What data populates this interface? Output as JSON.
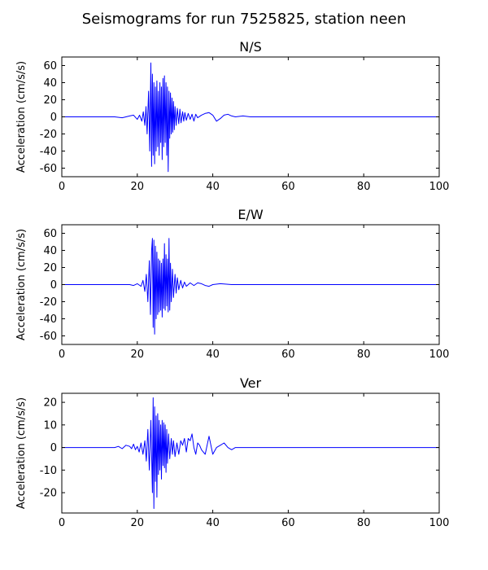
{
  "figure": {
    "title": "Seismograms for run 7525825, station neen"
  },
  "chart_data": [
    {
      "type": "line",
      "title": "N/S",
      "xlabel": "",
      "ylabel": "Acceleration (cm/s/s)",
      "xlim": [
        0,
        100
      ],
      "ylim": [
        -70,
        70
      ],
      "xticks": [
        0,
        20,
        40,
        60,
        80,
        100
      ],
      "yticks": [
        -60,
        -40,
        -20,
        0,
        20,
        40,
        60
      ],
      "grid": false,
      "series": [
        {
          "color": "#0000ff",
          "x": [
            0,
            10,
            14,
            16,
            17,
            18,
            19,
            20,
            20.6,
            21.2,
            21.6,
            22,
            22.3,
            22.6,
            23,
            23.3,
            23.6,
            23.8,
            24,
            24.2,
            24.4,
            24.6,
            24.8,
            25,
            25.2,
            25.4,
            25.6,
            25.8,
            26,
            26.2,
            26.4,
            26.6,
            26.8,
            27,
            27.2,
            27.4,
            27.6,
            27.8,
            28,
            28.2,
            28.4,
            28.6,
            28.8,
            29,
            29.2,
            29.4,
            29.6,
            29.8,
            30,
            30.3,
            30.6,
            31,
            31.3,
            31.6,
            32,
            32.3,
            32.6,
            33,
            33.5,
            34,
            34.5,
            35,
            35.5,
            36,
            37,
            38,
            39,
            40,
            41,
            42,
            43,
            44,
            45,
            46,
            48,
            50,
            55,
            60,
            70,
            80,
            90,
            100
          ],
          "y": [
            0,
            0,
            0,
            -1,
            0,
            1,
            2,
            -3,
            2,
            -5,
            6,
            -10,
            12,
            -20,
            30,
            -40,
            63,
            -58,
            50,
            -45,
            40,
            -55,
            35,
            -40,
            42,
            -35,
            30,
            -45,
            40,
            -30,
            35,
            -50,
            45,
            -35,
            48,
            -30,
            40,
            -45,
            35,
            -64,
            30,
            -25,
            28,
            -20,
            22,
            -18,
            18,
            -15,
            12,
            -10,
            10,
            -8,
            9,
            -7,
            6,
            -5,
            5,
            -4,
            4,
            -3,
            3,
            -5,
            3,
            -1,
            2,
            4,
            5,
            2,
            -5,
            -2,
            2,
            3,
            1,
            0,
            1,
            0,
            0,
            0,
            0,
            0,
            0,
            0
          ]
        }
      ]
    },
    {
      "type": "line",
      "title": "E/W",
      "xlabel": "",
      "ylabel": "Acceleration (cm/s/s)",
      "xlim": [
        0,
        100
      ],
      "ylim": [
        -70,
        70
      ],
      "xticks": [
        0,
        20,
        40,
        60,
        80,
        100
      ],
      "yticks": [
        -60,
        -40,
        -20,
        0,
        20,
        40,
        60
      ],
      "grid": false,
      "series": [
        {
          "color": "#0000ff",
          "x": [
            0,
            10,
            15,
            18,
            19,
            20,
            21,
            21.5,
            22,
            22.4,
            22.8,
            23.2,
            23.5,
            23.8,
            24,
            24.2,
            24.4,
            24.6,
            24.8,
            25,
            25.2,
            25.4,
            25.6,
            25.8,
            26,
            26.2,
            26.4,
            26.6,
            26.8,
            27,
            27.2,
            27.4,
            27.6,
            27.8,
            28,
            28.2,
            28.4,
            28.6,
            28.8,
            29,
            29.3,
            29.6,
            30,
            30.3,
            30.6,
            31,
            31.5,
            32,
            32.5,
            33,
            34,
            35,
            36,
            37,
            38,
            39,
            40,
            42,
            45,
            50,
            60,
            80,
            100
          ],
          "y": [
            0,
            0,
            0,
            0,
            -1,
            1,
            -2,
            5,
            -8,
            12,
            -20,
            28,
            -35,
            40,
            54,
            -50,
            52,
            -58,
            45,
            -40,
            38,
            -35,
            30,
            -32,
            28,
            -30,
            25,
            -38,
            30,
            -28,
            48,
            -30,
            35,
            -25,
            30,
            -32,
            54,
            -30,
            25,
            -20,
            18,
            -15,
            12,
            -10,
            8,
            -6,
            5,
            -4,
            3,
            -2,
            2,
            -1,
            2,
            1,
            -1,
            -2,
            0,
            1,
            0,
            0,
            0,
            0,
            0
          ]
        }
      ]
    },
    {
      "type": "line",
      "title": "Ver",
      "xlabel": "",
      "ylabel": "Acceleration (cm/s/s)",
      "xlim": [
        0,
        100
      ],
      "ylim": [
        -29,
        24
      ],
      "xticks": [
        0,
        20,
        40,
        60,
        80,
        100
      ],
      "yticks": [
        -20,
        -10,
        0,
        10,
        20
      ],
      "grid": false,
      "series": [
        {
          "color": "#0000ff",
          "x": [
            0,
            10,
            14,
            15,
            16,
            17,
            18,
            18.5,
            19,
            19.5,
            20,
            20.5,
            21,
            21.5,
            22,
            22.4,
            22.8,
            23.2,
            23.6,
            24,
            24.2,
            24.4,
            24.6,
            24.8,
            25,
            25.2,
            25.4,
            25.6,
            25.8,
            26,
            26.2,
            26.4,
            26.6,
            26.8,
            27,
            27.2,
            27.4,
            27.6,
            27.8,
            28,
            28.3,
            28.6,
            29,
            29.3,
            29.6,
            30,
            30.5,
            31,
            31.5,
            32,
            32.5,
            33,
            33.5,
            34,
            34.5,
            35,
            35.5,
            36,
            36.5,
            37,
            38,
            39,
            40,
            41,
            42,
            43,
            44,
            45,
            46,
            48,
            50,
            52,
            55,
            60,
            70,
            80,
            90,
            95,
            97,
            100
          ],
          "y": [
            0,
            0,
            0,
            0.5,
            -0.5,
            1,
            0.5,
            -0.5,
            1.5,
            -1,
            0.5,
            -2,
            2,
            -3,
            3,
            -6,
            8,
            -10,
            12,
            -20,
            22,
            -27,
            18,
            -15,
            14,
            -22,
            15,
            -12,
            12,
            -10,
            10,
            -14,
            12,
            -8,
            11,
            -9,
            10,
            -11,
            8,
            -7,
            6,
            -5,
            4,
            -3,
            3,
            -4,
            2,
            -3,
            3,
            1,
            4,
            -2,
            4,
            3,
            6,
            0,
            -3,
            2,
            1,
            -1,
            -3,
            5,
            -3,
            0,
            1,
            2,
            0,
            -1,
            0,
            0,
            0,
            0,
            0,
            0,
            0,
            0,
            0,
            0,
            0,
            0
          ]
        }
      ]
    }
  ]
}
